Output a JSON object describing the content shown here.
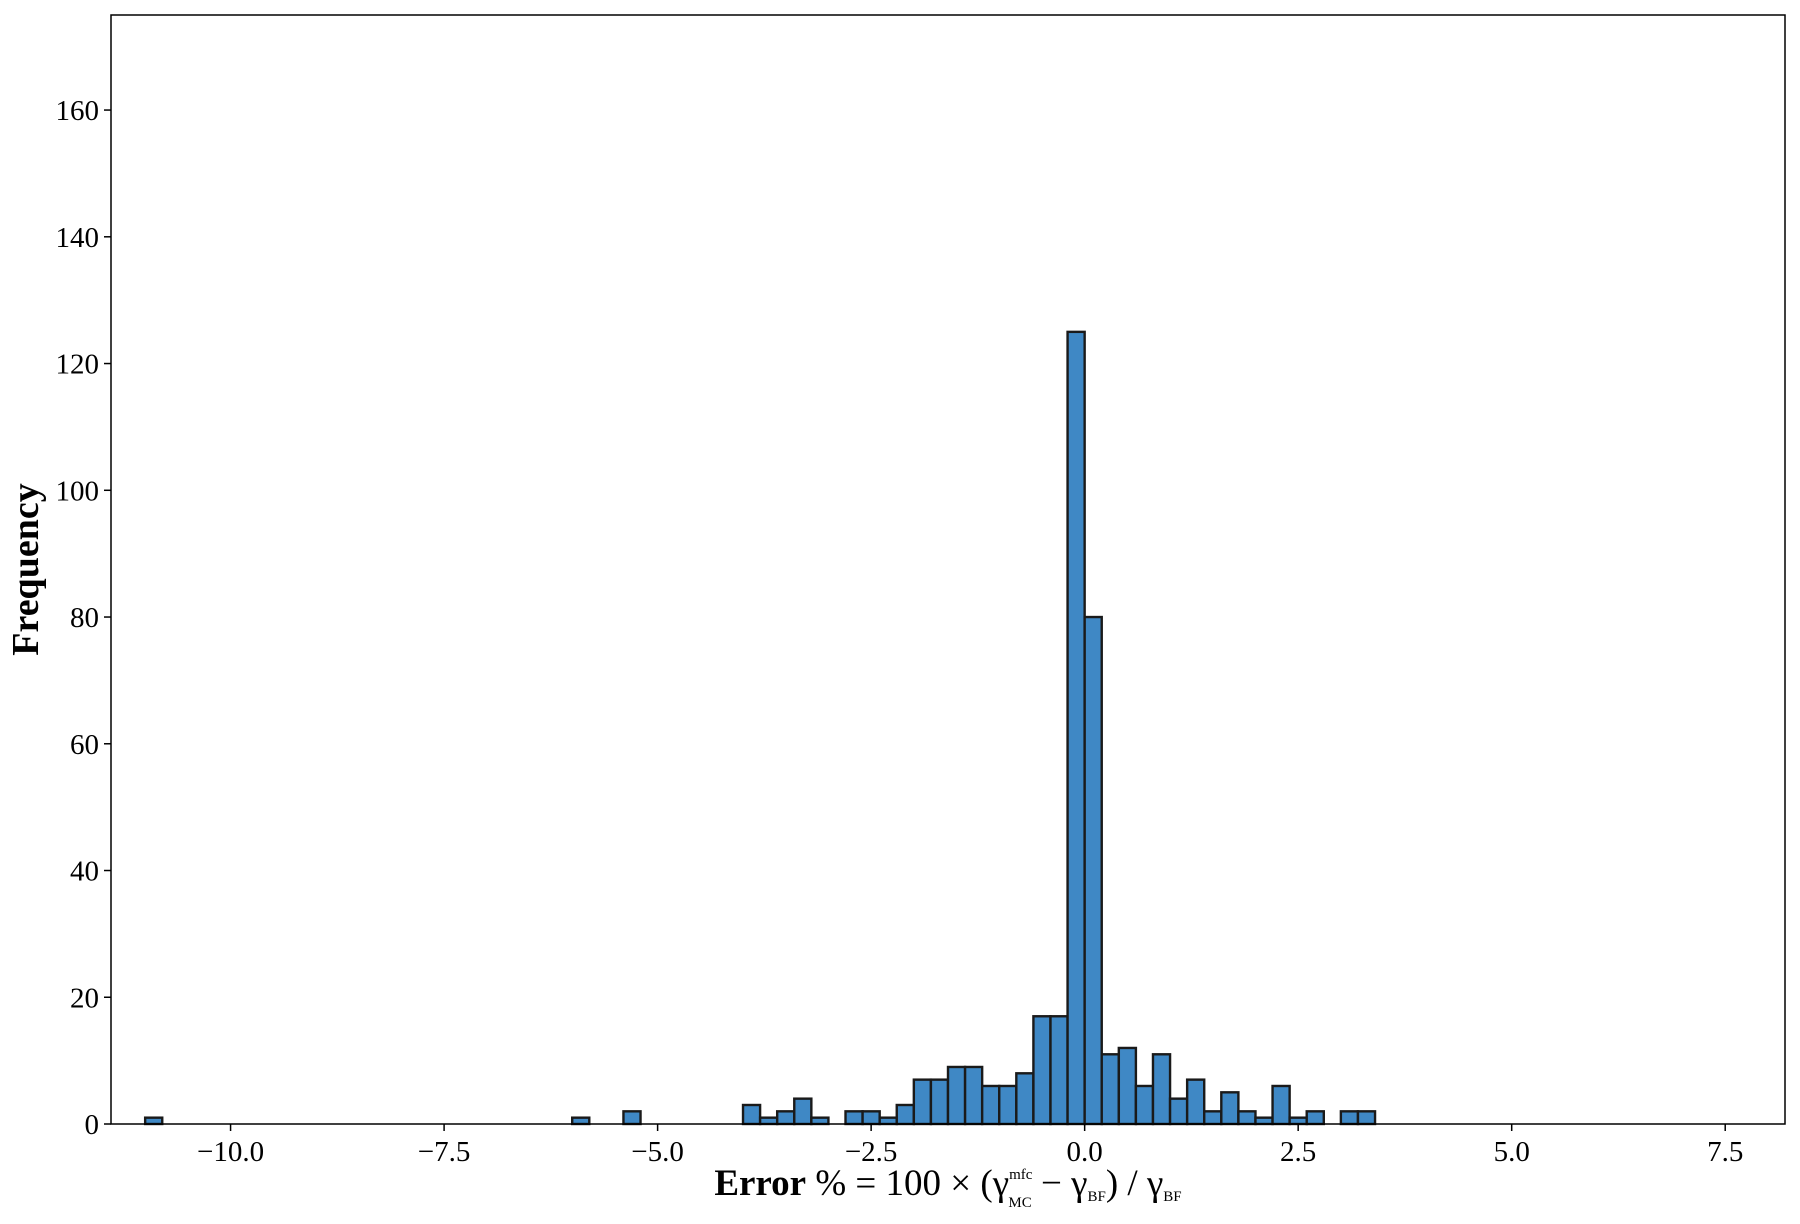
{
  "chart_data": {
    "type": "histogram",
    "xlabel": [
      "Error",
      " % = 100 × (γ",
      "mfc",
      "MC",
      " − γ",
      "BF",
      ") / γ",
      "BF"
    ],
    "ylabel": "Frequency",
    "bins": [
      -11,
      -10.8,
      -10.6,
      -10.4,
      -10.2,
      -10,
      -9.8,
      -9.6,
      -9.4,
      -9.2,
      -9,
      -8.8,
      -8.6,
      -8.4,
      -8.2,
      -8,
      -7.8,
      -7.6,
      -7.4,
      -7.2,
      -7,
      -6.8,
      -6.6,
      -6.4,
      -6.2,
      -6,
      -5.8,
      -5.6,
      -5.4,
      -5.2,
      -5,
      -4.8,
      -4.6,
      -4.4,
      -4.2,
      -4,
      -3.8,
      -3.6,
      -3.4,
      -3.2,
      -3,
      -2.8,
      -2.6,
      -2.4,
      -2.2,
      -2,
      -1.8,
      -1.6,
      -1.4,
      -1.2,
      -1,
      -0.8,
      -0.6,
      -0.4,
      -0.2,
      0,
      0.2,
      0.4,
      0.6,
      0.8,
      1,
      1.2,
      1.4,
      1.6,
      1.8,
      2,
      2.2,
      2.4,
      2.6,
      2.8,
      3,
      3.2,
      3.4,
      3.6,
      3.8,
      4,
      4.2,
      4.4,
      4.6,
      4.8,
      5,
      5.2,
      5.4,
      5.6,
      5.8,
      6,
      6.2,
      6.4,
      6.6,
      6.8,
      7,
      7.2,
      7.4,
      7.6,
      7.8,
      8
    ],
    "values": [
      1,
      0,
      0,
      0,
      0,
      0,
      0,
      0,
      0,
      0,
      0,
      0,
      0,
      0,
      0,
      0,
      0,
      0,
      0,
      0,
      0,
      0,
      0,
      0,
      0,
      1,
      0,
      0,
      2,
      0,
      0,
      0,
      0,
      0,
      0,
      3,
      1,
      2,
      4,
      1,
      0,
      2,
      2,
      1,
      3,
      7,
      7,
      9,
      9,
      6,
      6,
      8,
      17,
      17,
      125,
      80,
      11,
      12,
      6,
      11,
      4,
      7,
      2,
      5,
      2,
      1,
      6,
      1,
      2,
      0,
      2,
      2,
      0,
      0,
      0,
      0,
      0,
      0,
      0,
      0,
      0,
      0,
      0,
      0,
      0,
      0,
      0,
      0,
      0,
      0,
      0,
      0,
      0,
      0,
      0
    ],
    "color": "#3f88c5",
    "edgecolor": "#1a1a1a",
    "xlim": [
      -11.4,
      8.2
    ],
    "ylim": [
      0,
      175
    ],
    "xticks": [
      {
        "value": -10,
        "label": "−10.0"
      },
      {
        "value": -7.5,
        "label": "−7.5"
      },
      {
        "value": -5,
        "label": "−5.0"
      },
      {
        "value": -2.5,
        "label": "−2.5"
      },
      {
        "value": 0,
        "label": "0.0"
      },
      {
        "value": 2.5,
        "label": "2.5"
      },
      {
        "value": 5,
        "label": "5.0"
      },
      {
        "value": 7.5,
        "label": "7.5"
      }
    ],
    "yticks": [
      0,
      20,
      40,
      60,
      80,
      100,
      120,
      140,
      160
    ],
    "grid": false
  }
}
